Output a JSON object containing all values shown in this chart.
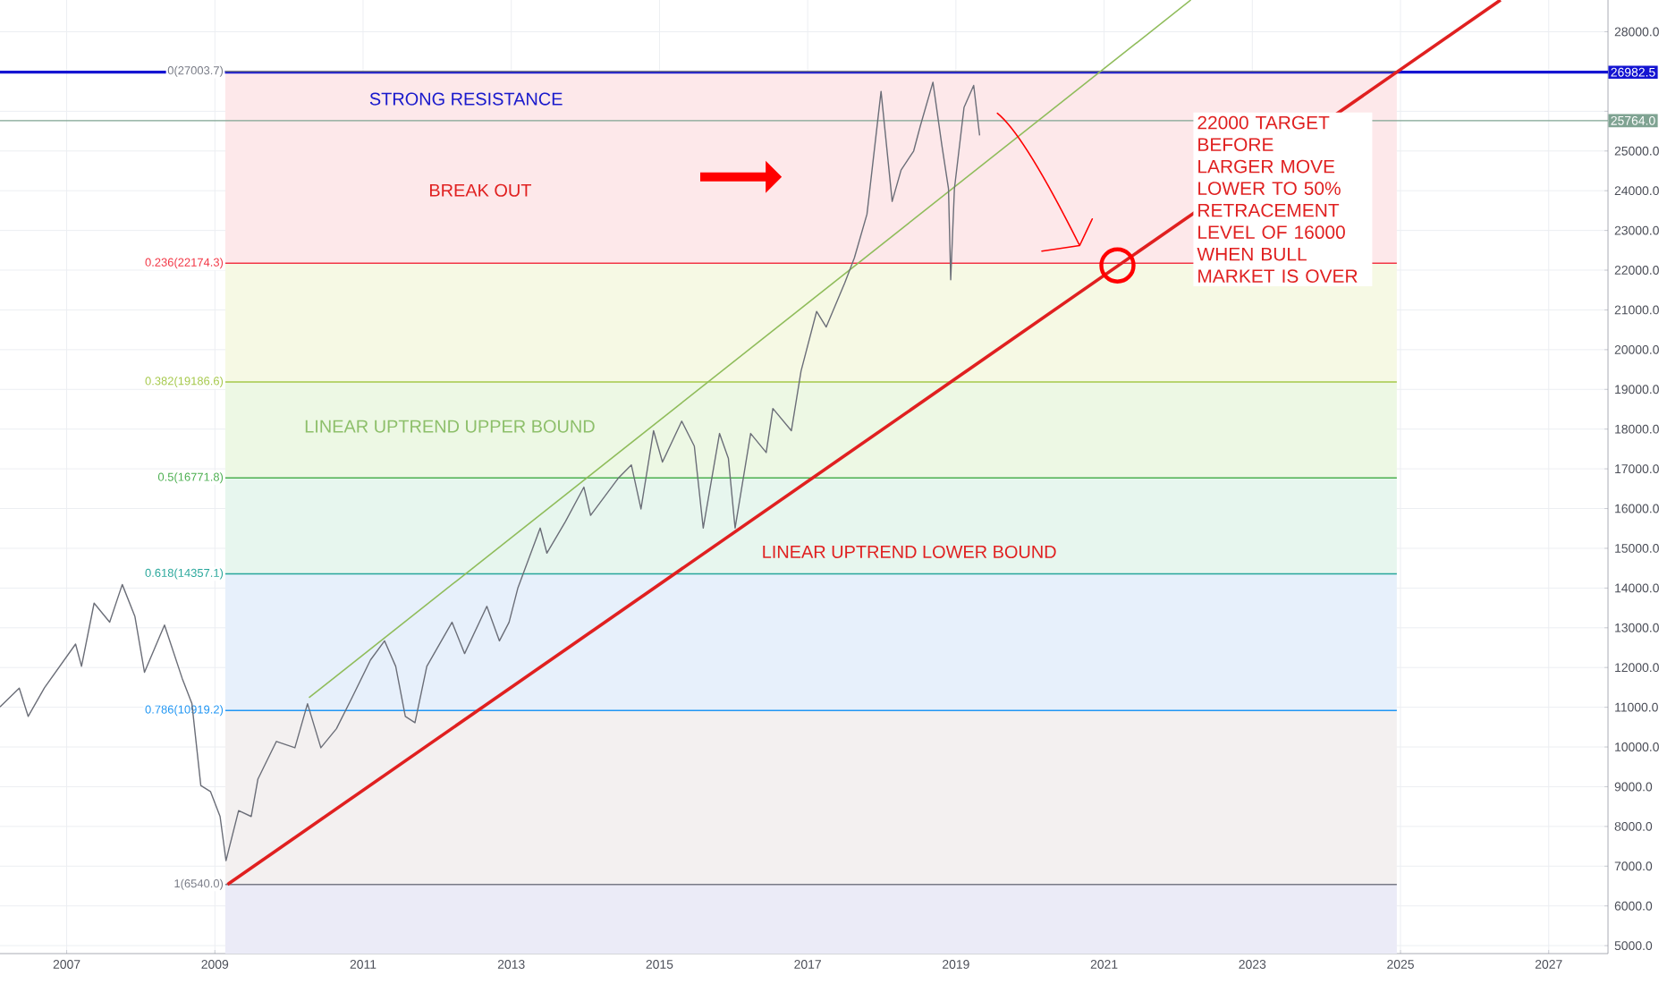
{
  "chart_data": {
    "type": "line",
    "xlim": [
      2006.1,
      2027.8
    ],
    "ylim": [
      4800,
      28800
    ],
    "xticks": [
      2007,
      2009,
      2011,
      2013,
      2015,
      2017,
      2019,
      2021,
      2023,
      2025,
      2027
    ],
    "yticks": [
      {
        "value": 5000,
        "label": "5000.0"
      },
      {
        "value": 6000,
        "label": "6000.0"
      },
      {
        "value": 7000,
        "label": "7000.0"
      },
      {
        "value": 8000,
        "label": "8000.0"
      },
      {
        "value": 9000,
        "label": "9000.0"
      },
      {
        "value": 10000,
        "label": "10000.0"
      },
      {
        "value": 11000,
        "label": "11000.0"
      },
      {
        "value": 12000,
        "label": "12000.0"
      },
      {
        "value": 13000,
        "label": "13000.0"
      },
      {
        "value": 14000,
        "label": "14000.0"
      },
      {
        "value": 15000,
        "label": "15000.0"
      },
      {
        "value": 16000,
        "label": "16000.0"
      },
      {
        "value": 17000,
        "label": "17000.0"
      },
      {
        "value": 18000,
        "label": "18000.0"
      },
      {
        "value": 19000,
        "label": "19000.0"
      },
      {
        "value": 20000,
        "label": "20000.0"
      },
      {
        "value": 21000,
        "label": "21000.0"
      },
      {
        "value": 22000,
        "label": "22000.0"
      },
      {
        "value": 23000,
        "label": "23000.0"
      },
      {
        "value": 24000,
        "label": "24000.0"
      },
      {
        "value": 25000,
        "label": "25000.0"
      },
      {
        "value": 26000,
        "label": null
      },
      {
        "value": 27000,
        "label": null
      },
      {
        "value": 28000,
        "label": "28000.0"
      }
    ],
    "grid": true,
    "series": [
      {
        "name": "0(27003.7)",
        "color": "#787b86",
        "x": [
          2009.14,
          2024.95
        ],
        "values": [
          27003.7,
          27003.7
        ]
      },
      {
        "name": "0.236(22174.3)",
        "color": "#f23645",
        "x": [
          2009.14,
          2024.95
        ],
        "values": [
          22174.3,
          22174.3
        ]
      },
      {
        "name": "0.382(19186.6)",
        "color": "#a5c84a",
        "x": [
          2009.14,
          2024.95
        ],
        "values": [
          19186.6,
          19186.6
        ]
      },
      {
        "name": "0.5(16771.8)",
        "color": "#4caf50",
        "x": [
          2009.14,
          2024.95
        ],
        "values": [
          16771.8,
          16771.8
        ]
      },
      {
        "name": "0.618(14357.1)",
        "color": "#26a69a",
        "x": [
          2009.14,
          2024.95
        ],
        "values": [
          14357.1,
          14357.1
        ]
      },
      {
        "name": "0.786(10919.2)",
        "color": "#2196f3",
        "x": [
          2009.14,
          2024.95
        ],
        "values": [
          10919.2,
          10919.2
        ]
      },
      {
        "name": "1(6540.0)",
        "color": "#787b86",
        "x": [
          2009.14,
          2024.95
        ],
        "values": [
          6540,
          6540
        ]
      },
      {
        "color": "#8fbc5a",
        "x": [
          2010.27,
          2022.17
        ],
        "values": [
          11240,
          28800
        ]
      },
      {
        "color": "#e02020",
        "x": [
          2009.17,
          2026.35
        ],
        "values": [
          6540,
          28800
        ]
      },
      {
        "color": "#6b6e78",
        "x": [
          2006.1,
          2006.36,
          2006.48,
          2006.7,
          2007.12,
          2007.2,
          2007.37,
          2007.58,
          2007.75,
          2007.92,
          2008.05,
          2008.32,
          2008.56,
          2008.69,
          2008.81,
          2008.94,
          2009.07,
          2009.15,
          2009.32,
          2009.49,
          2009.58,
          2009.83,
          2010.08,
          2010.25,
          2010.43,
          2010.64,
          2010.85,
          2011.1,
          2011.29,
          2011.44,
          2011.57,
          2011.7,
          2011.86,
          2012.2,
          2012.37,
          2012.67,
          2012.84,
          2012.97,
          2013.09,
          2013.39,
          2013.48,
          2013.73,
          2013.98,
          2014.07,
          2014.45,
          2014.62,
          2014.75,
          2014.92,
          2015.04,
          2015.3,
          2015.47,
          2015.59,
          2015.81,
          2015.93,
          2016.02,
          2016.23,
          2016.44,
          2016.53,
          2016.78,
          2016.91,
          2017.12,
          2017.25,
          2017.5,
          2017.63,
          2017.8,
          2017.99,
          2018.14,
          2018.26,
          2018.43,
          2018.52,
          2018.69,
          2018.81,
          2018.9,
          2018.93,
          2018.98,
          2019.11,
          2019.24,
          2019.32
        ],
        "values": [
          11010,
          11480,
          10770,
          11490,
          12590,
          12030,
          13620,
          13140,
          14090,
          13290,
          11880,
          13070,
          11720,
          11090,
          9030,
          8880,
          8250,
          7140,
          8400,
          8250,
          9190,
          10140,
          9980,
          11090,
          9980,
          10460,
          11240,
          12190,
          12670,
          12030,
          10770,
          10610,
          12030,
          13140,
          12350,
          13540,
          12670,
          13140,
          14010,
          15510,
          14880,
          15670,
          16540,
          15830,
          16780,
          17100,
          15990,
          17960,
          17170,
          18200,
          17570,
          15510,
          17890,
          17260,
          15510,
          17890,
          17410,
          18520,
          17960,
          19460,
          20960,
          20570,
          21680,
          22310,
          23410,
          26500,
          23730,
          24520,
          25000,
          25630,
          26730,
          25150,
          24050,
          21760,
          24050,
          26100,
          26650,
          25390
        ]
      }
    ],
    "bands": [
      {
        "axis": "y",
        "from": 22174.3,
        "to": 27003.7,
        "color": "#fde8ea"
      },
      {
        "axis": "y",
        "from": 19186.6,
        "to": 22174.3,
        "color": "#f6f9e4"
      },
      {
        "axis": "y",
        "from": 16771.8,
        "to": 19186.6,
        "color": "#edf8e4"
      },
      {
        "axis": "y",
        "from": 14357.1,
        "to": 16771.8,
        "color": "#e7f6ee"
      },
      {
        "axis": "y",
        "from": 10919.2,
        "to": 14357.1,
        "color": "#e7f0fb"
      },
      {
        "axis": "y",
        "from": 6540,
        "to": 10919.2,
        "color": "#f3f0f0"
      },
      {
        "axis": "y",
        "from": 4800,
        "to": 6540,
        "color": "#ebebf7"
      }
    ],
    "ref_lines": [
      {
        "axis": "y",
        "value": 26982.5,
        "label": "26982.5",
        "color": "#1414d2"
      },
      {
        "axis": "y",
        "value": 25764,
        "label": "25764.0",
        "color": "#7fa392"
      }
    ],
    "annotations": [
      "STRONG RESISTANCE",
      "BREAK OUT",
      "LINEAR UPTREND UPPER BOUND",
      "LINEAR UPTREND LOWER BOUND",
      "22000 TARGET BEFORE LARGER MOVE LOWER TO 50% RETRACEMENT LEVEL OF 16000 WHEN BULL MARKET IS OVER"
    ]
  }
}
